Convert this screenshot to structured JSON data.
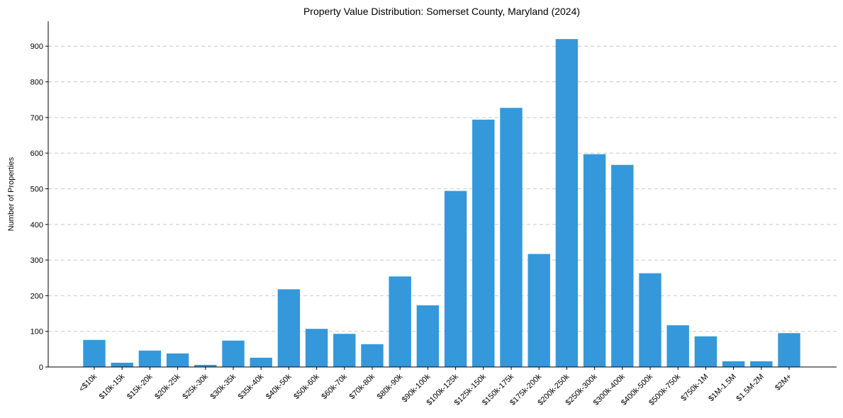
{
  "chart_data": {
    "type": "bar",
    "title": "Property Value Distribution: Somerset County, Maryland (2024)",
    "xlabel": "",
    "ylabel": "Number of Properties",
    "ylim": [
      0,
      970
    ],
    "yticks": [
      0,
      100,
      200,
      300,
      400,
      500,
      600,
      700,
      800,
      900
    ],
    "grid": "y-dashed",
    "bar_color": "#3498db",
    "categories": [
      "<$10k",
      "$10k-15k",
      "$15k-20k",
      "$20k-25k",
      "$25k-30k",
      "$30k-35k",
      "$35k-40k",
      "$40k-50k",
      "$50k-60k",
      "$60k-70k",
      "$70k-80k",
      "$80k-90k",
      "$90k-100k",
      "$100k-125k",
      "$125k-150k",
      "$150k-175k",
      "$175k-200k",
      "$200k-250k",
      "$250k-300k",
      "$300k-400k",
      "$400k-500k",
      "$500k-750k",
      "$750k-1M",
      "$1M-1.5M",
      "$1.5M-2M",
      "$2M+"
    ],
    "values": [
      76,
      12,
      46,
      38,
      6,
      74,
      26,
      218,
      107,
      93,
      64,
      254,
      173,
      494,
      694,
      727,
      317,
      920,
      597,
      567,
      263,
      117,
      86,
      16,
      16,
      95
    ]
  }
}
